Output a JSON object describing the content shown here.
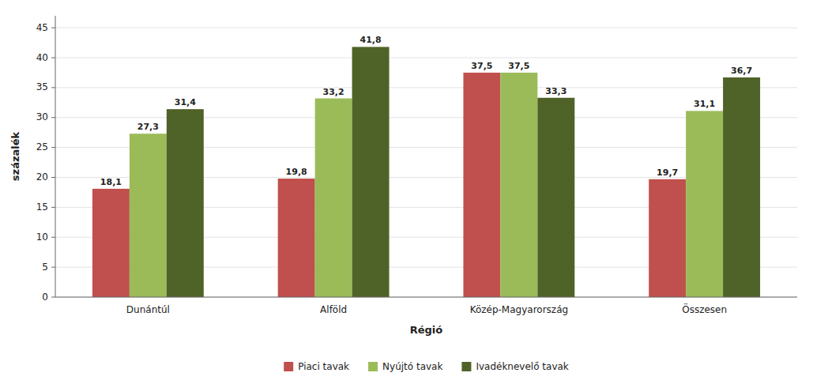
{
  "chart_data": {
    "type": "bar",
    "categories": [
      "Dunántúl",
      "Alföld",
      "Közép-Magyarország",
      "Összesen"
    ],
    "series": [
      {
        "name": "Piaci tavak",
        "values": [
          18.1,
          19.8,
          37.5,
          19.7
        ],
        "value_labels": [
          "18,1",
          "19,8",
          "37,5",
          "19,7"
        ],
        "color": "#C0504D"
      },
      {
        "name": "Nyújtó tavak",
        "values": [
          27.3,
          33.2,
          37.5,
          31.1
        ],
        "value_labels": [
          "27,3",
          "33,2",
          "37,5",
          "31,1"
        ],
        "color": "#9BBB59"
      },
      {
        "name": "Ivadéknevelő tavak",
        "values": [
          31.4,
          41.8,
          33.3,
          36.7
        ],
        "value_labels": [
          "31,4",
          "41,8",
          "33,3",
          "36,7"
        ],
        "color": "#4F6228"
      }
    ],
    "xlabel": "Régió",
    "ylabel": "százalék",
    "ylim": [
      0,
      47
    ],
    "yticks": [
      0,
      5,
      10,
      15,
      20,
      25,
      30,
      35,
      40,
      45
    ],
    "grid": true,
    "data_labels": true,
    "legend": "bottom"
  }
}
